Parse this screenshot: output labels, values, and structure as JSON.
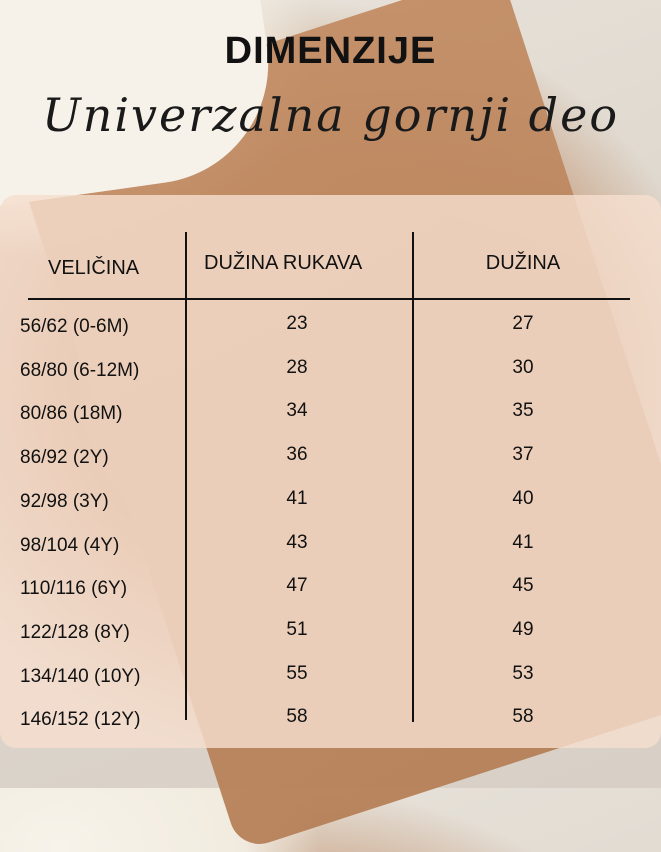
{
  "header": {
    "title": "DIMENZIJE",
    "subtitle": "Univerzalna gornji deo"
  },
  "table": {
    "columns": [
      "VELIČINA",
      "DUŽINA RUKAVA",
      "DUŽINA"
    ],
    "rows": [
      [
        "56/62 (0-6M)",
        "23",
        "27"
      ],
      [
        "68/80 (6-12M)",
        "28",
        "30"
      ],
      [
        "80/86 (18M)",
        "34",
        "35"
      ],
      [
        "86/92 (2Y)",
        "36",
        "37"
      ],
      [
        "92/98 (3Y)",
        "41",
        "40"
      ],
      [
        "98/104 (4Y)",
        "43",
        "41"
      ],
      [
        "110/116 (6Y)",
        "47",
        "45"
      ],
      [
        "122/128 (8Y)",
        "51",
        "49"
      ],
      [
        "134/140 (10Y)",
        "55",
        "53"
      ],
      [
        "146/152 (12Y)",
        "58",
        "58"
      ]
    ]
  }
}
